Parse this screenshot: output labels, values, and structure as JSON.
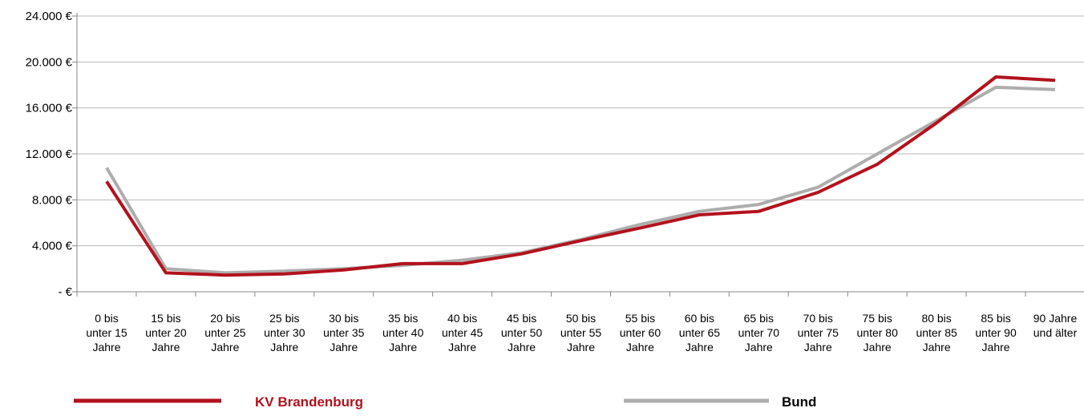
{
  "chart_data": {
    "type": "line",
    "categories": [
      "0 bis unter 15 Jahre",
      "15 bis unter 20 Jahre",
      "20 bis unter 25 Jahre",
      "25 bis unter 30 Jahre",
      "30 bis unter 35 Jahre",
      "35 bis unter 40 Jahre",
      "40 bis unter 45 Jahre",
      "45 bis unter 50 Jahre",
      "50 bis unter 55 Jahre",
      "55 bis unter 60 Jahre",
      "60 bis unter 65 Jahre",
      "65 bis unter 70 Jahre",
      "70 bis unter 75 Jahre",
      "75 bis unter 80 Jahre",
      "80 bis unter 85 Jahre",
      "85 bis unter 90 Jahre",
      "90 Jahre und älter"
    ],
    "category_lines": [
      [
        "0 bis",
        "unter 15",
        "Jahre"
      ],
      [
        "15 bis",
        "unter 20",
        "Jahre"
      ],
      [
        "20 bis",
        "unter 25",
        "Jahre"
      ],
      [
        "25 bis",
        "unter 30",
        "Jahre"
      ],
      [
        "30 bis",
        "unter 35",
        "Jahre"
      ],
      [
        "35 bis",
        "unter 40",
        "Jahre"
      ],
      [
        "40 bis",
        "unter 45",
        "Jahre"
      ],
      [
        "45 bis",
        "unter 50",
        "Jahre"
      ],
      [
        "50 bis",
        "unter 55",
        "Jahre"
      ],
      [
        "55 bis",
        "unter 60",
        "Jahre"
      ],
      [
        "60 bis",
        "unter 65",
        "Jahre"
      ],
      [
        "65 bis",
        "unter 70",
        "Jahre"
      ],
      [
        "70 bis",
        "unter 75",
        "Jahre"
      ],
      [
        "75 bis",
        "unter 80",
        "Jahre"
      ],
      [
        "80 bis",
        "unter 85",
        "Jahre"
      ],
      [
        "85 bis",
        "unter 90",
        "Jahre"
      ],
      [
        "90 Jahre",
        "und älter"
      ]
    ],
    "series": [
      {
        "name": "KV Brandenburg",
        "color": "#b2121d",
        "values": [
          9600,
          1650,
          1450,
          1550,
          1900,
          2450,
          2450,
          3300,
          4450,
          5550,
          6700,
          7000,
          8650,
          11100,
          14700,
          18700,
          18400
        ]
      },
      {
        "name": "Bund",
        "color": "#adadad",
        "values": [
          10800,
          2000,
          1650,
          1800,
          2000,
          2300,
          2750,
          3400,
          4550,
          5850,
          7000,
          7600,
          9100,
          12000,
          14900,
          17800,
          17600
        ]
      }
    ],
    "y_ticks": [
      0,
      4000,
      8000,
      12000,
      16000,
      20000,
      24000
    ],
    "y_tick_labels": [
      "- €",
      "4.000 €",
      "8.000 €",
      "12.000 €",
      "16.000 €",
      "20.000 €",
      "24.000 €"
    ],
    "ylim": [
      0,
      24000
    ],
    "grid": true,
    "legend": "bottom"
  }
}
